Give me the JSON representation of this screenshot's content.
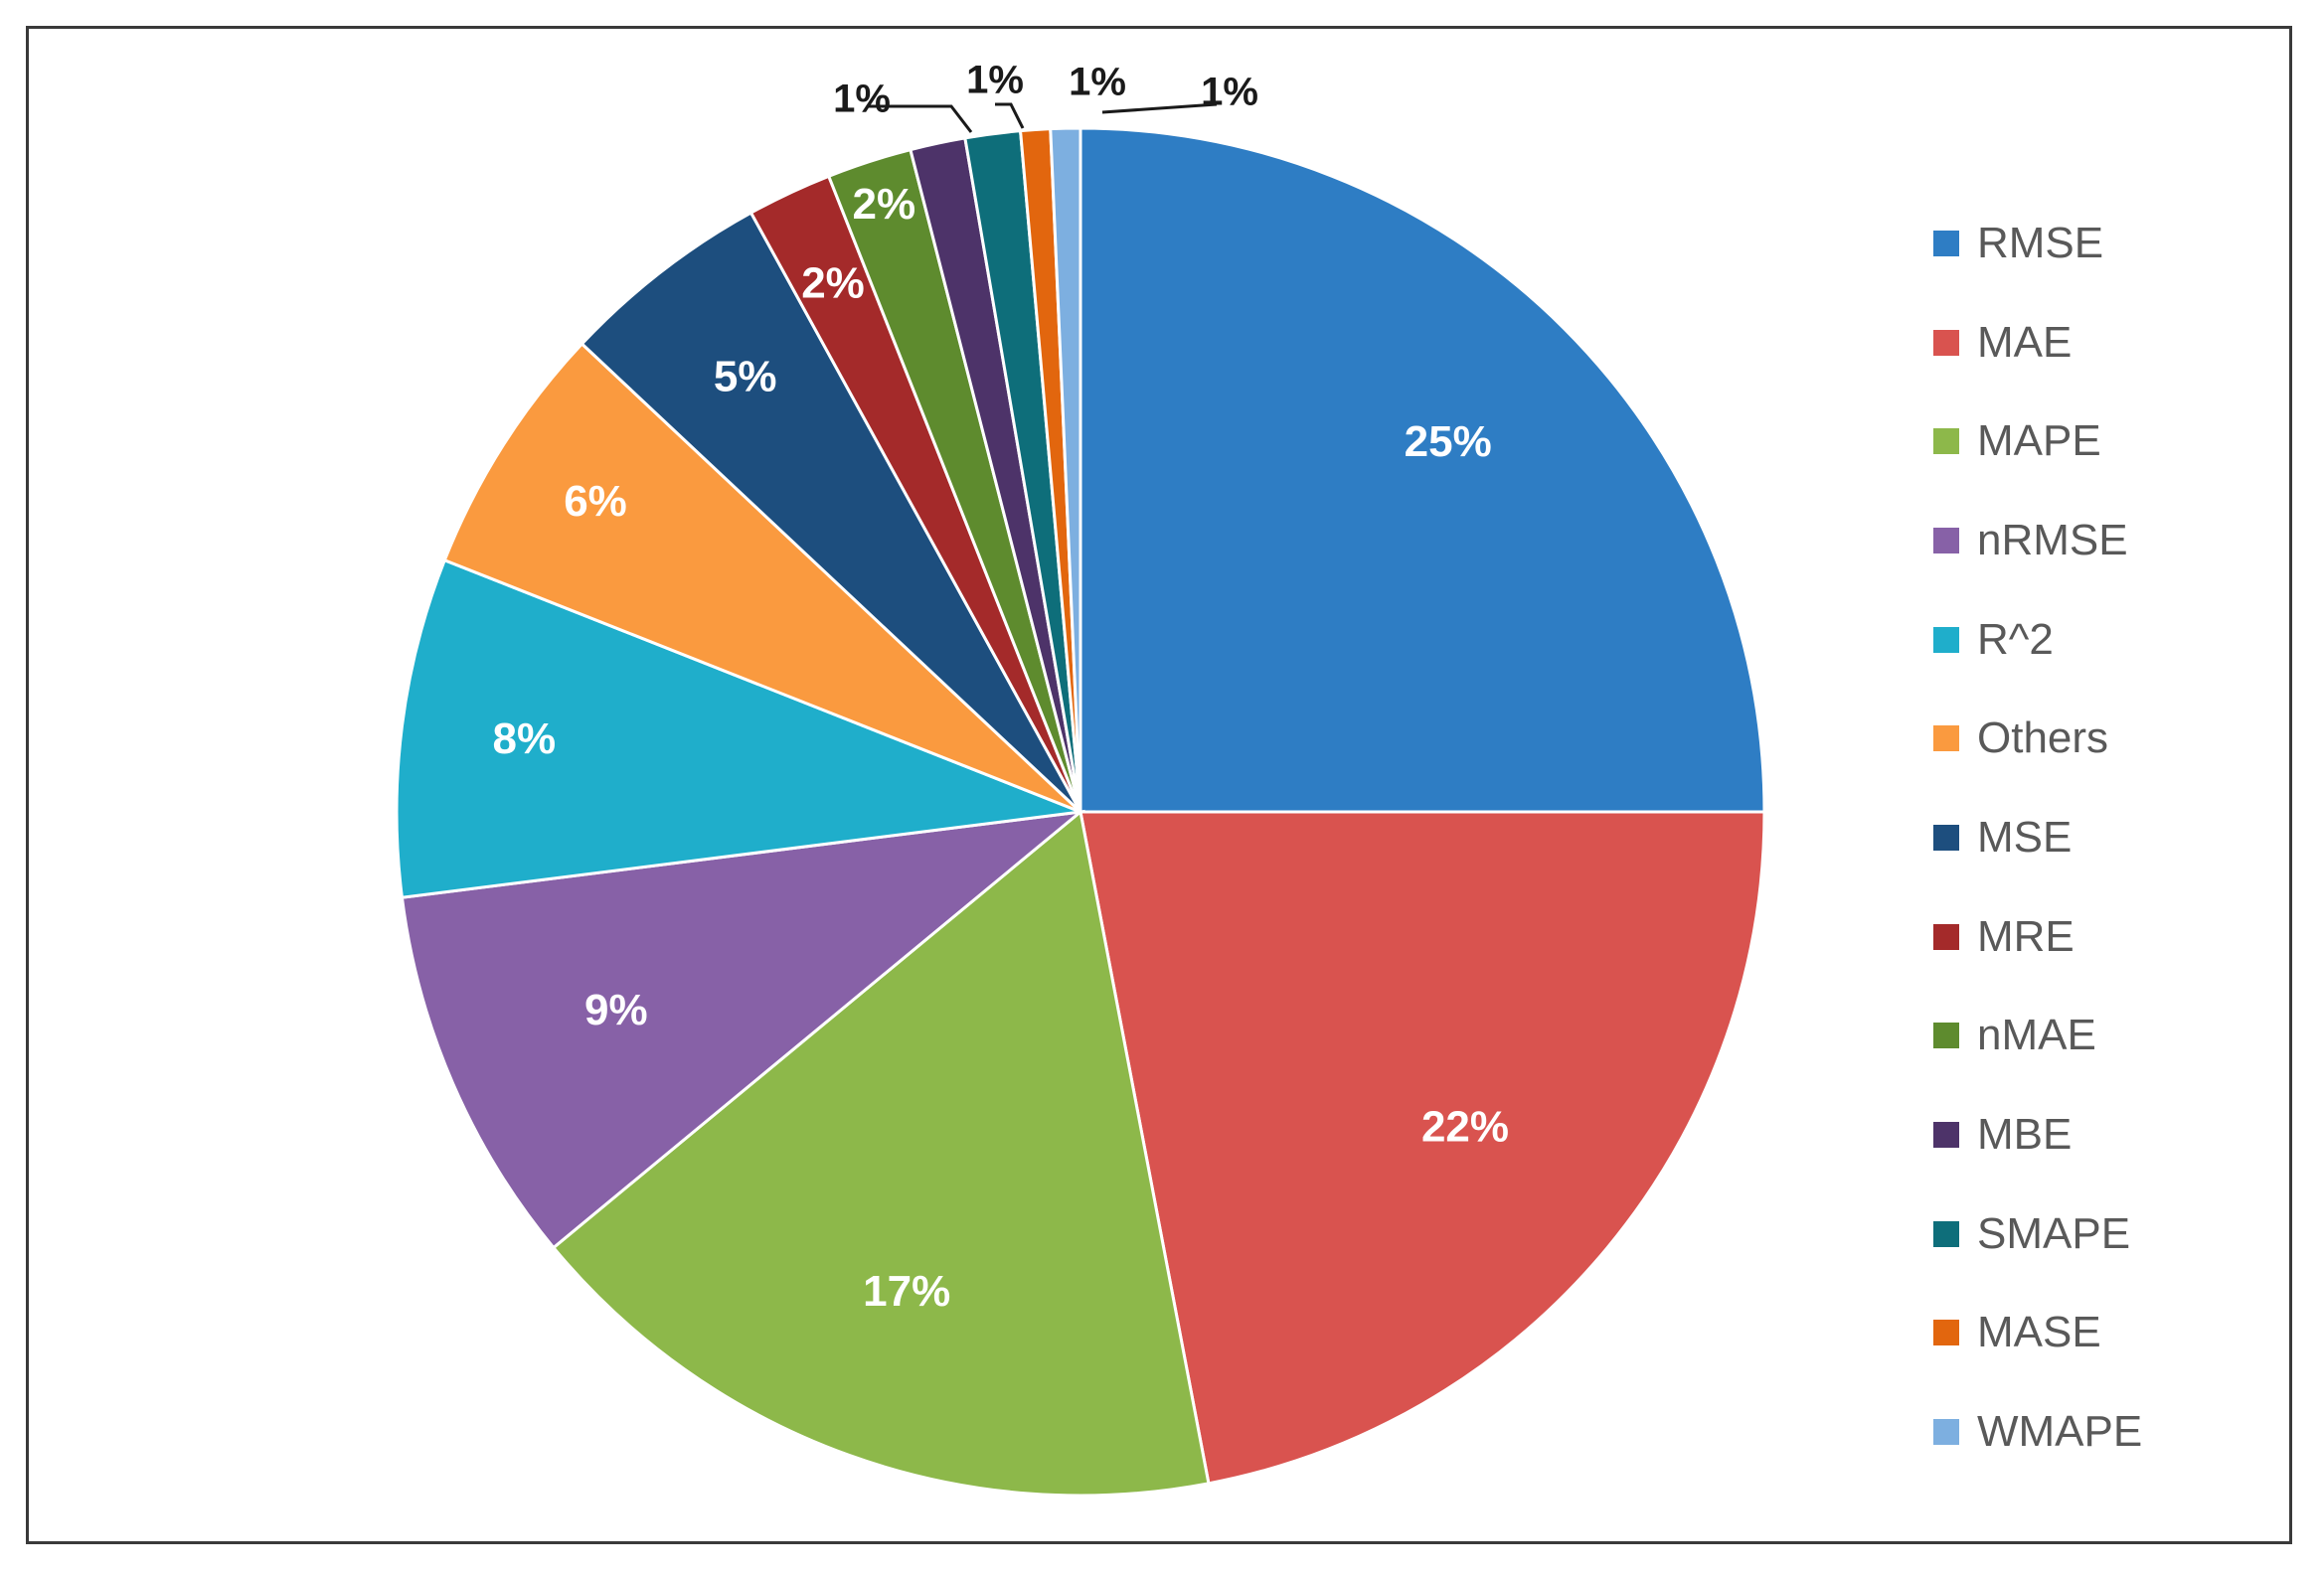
{
  "chart_data": {
    "type": "pie",
    "title": "",
    "legend_position": "right",
    "start_angle_deg": 0,
    "direction": "clockwise",
    "slices": [
      {
        "name": "RMSE",
        "value": 25,
        "label": "25%",
        "color": "#2E7DC4"
      },
      {
        "name": "MAE",
        "value": 22,
        "label": "22%",
        "color": "#D9534F"
      },
      {
        "name": "MAPE",
        "value": 17,
        "label": "17%",
        "color": "#8DB84A"
      },
      {
        "name": "nRMSE",
        "value": 9,
        "label": "9%",
        "color": "#8761A7"
      },
      {
        "name": "R^2",
        "value": 8,
        "label": "8%",
        "color": "#1FAECB"
      },
      {
        "name": "Others",
        "value": 6,
        "label": "6%",
        "color": "#FA9A3F"
      },
      {
        "name": "MSE",
        "value": 5,
        "label": "5%",
        "color": "#1D4E7E"
      },
      {
        "name": "MRE",
        "value": 2,
        "label": "2%",
        "color": "#A42A2A"
      },
      {
        "name": "nMAE",
        "value": 2,
        "label": "2%",
        "color": "#5E8B2E"
      },
      {
        "name": "MBE",
        "value": 1.3,
        "label": "1%",
        "color": "#4D3369"
      },
      {
        "name": "SMAPE",
        "value": 1.3,
        "label": "1%",
        "color": "#0E6E7A"
      },
      {
        "name": "MASE",
        "value": 0.7,
        "label": "1%",
        "color": "#E2660E"
      },
      {
        "name": "WMAPE",
        "value": 0.7,
        "label": "1%",
        "color": "#7DAFE0"
      }
    ]
  }
}
